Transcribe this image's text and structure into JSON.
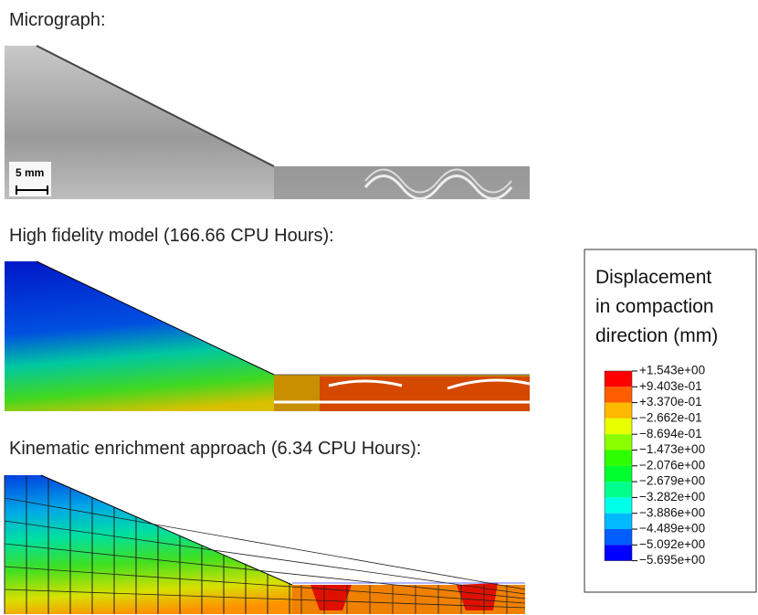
{
  "micrograph": {
    "title": "Micrograph:",
    "scale_bar": "5 mm"
  },
  "high_fidelity": {
    "title": "High fidelity model (166.66 CPU Hours):"
  },
  "kinematic": {
    "title": "Kinematic enrichment approach (6.34 CPU Hours):"
  },
  "legend": {
    "title": [
      "Displacement",
      "in compaction",
      "direction (mm)"
    ],
    "labels": [
      "+1.543e+00",
      "+9.403e-01",
      "+3.370e-01",
      "−2.662e-01",
      "−8.694e-01",
      "−1.473e+00",
      "−2.076e+00",
      "−2.679e+00",
      "−3.282e+00",
      "−3.886e+00",
      "−4.489e+00",
      "−5.092e+00",
      "−5.695e+00"
    ],
    "colors": [
      "#ff0000",
      "#ff5d00",
      "#ffb900",
      "#e8ff00",
      "#8bff00",
      "#2eff00",
      "#00ff2e",
      "#00ff8b",
      "#00ffe8",
      "#00b9ff",
      "#005dff",
      "#0000ff"
    ]
  }
}
